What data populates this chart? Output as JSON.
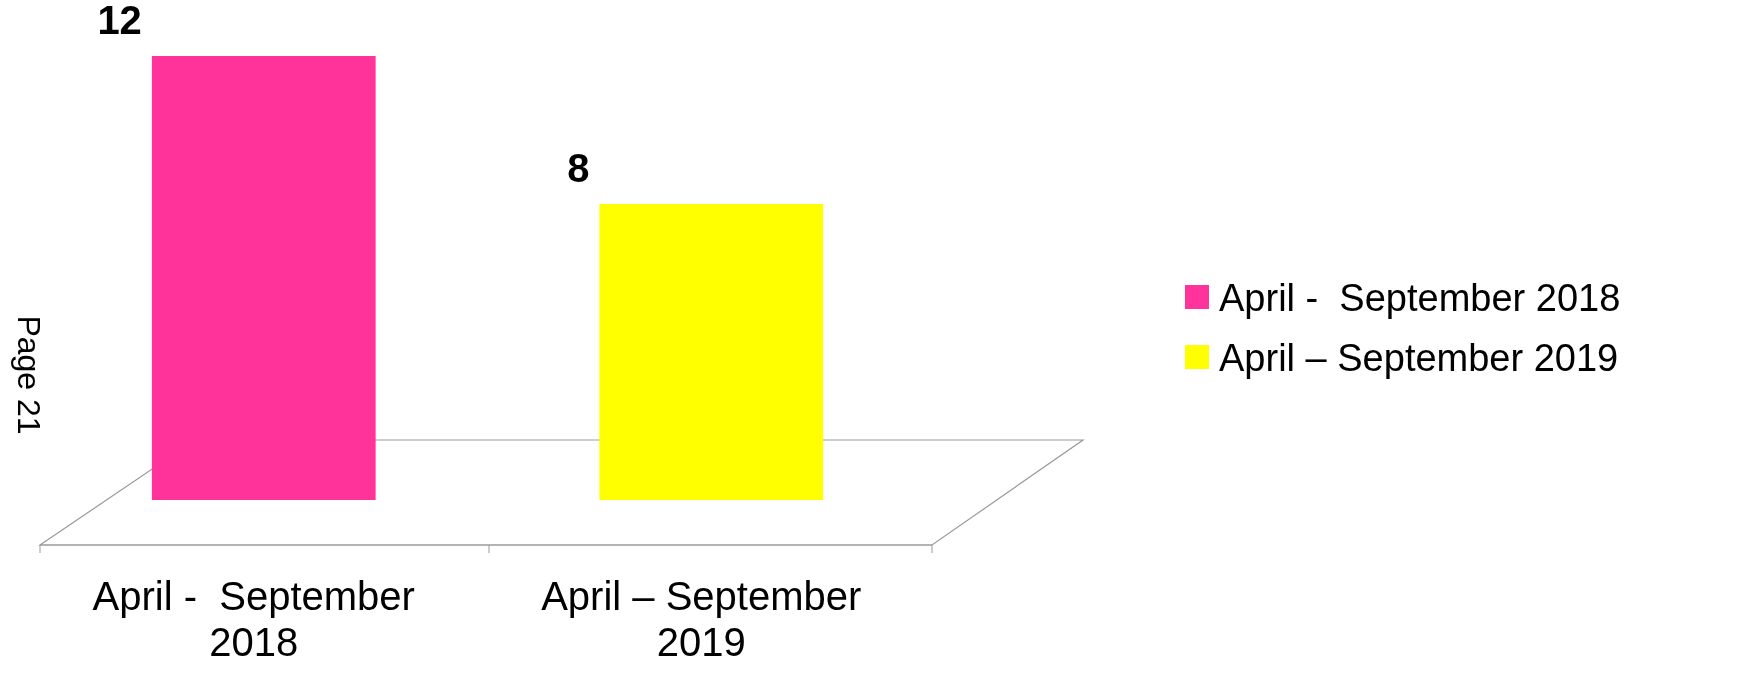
{
  "chart_data": {
    "type": "bar",
    "categories": [
      "April -  September 2018",
      "April – September 2019"
    ],
    "series": [
      {
        "name": "April -  September 2018",
        "color": "#ff3399",
        "values": [
          12,
          null
        ]
      },
      {
        "name": "April – September 2019",
        "color": "#ffff00",
        "values": [
          null,
          8
        ]
      }
    ],
    "data_labels": true,
    "legend": "right",
    "annotations": [
      "Page 21"
    ]
  }
}
